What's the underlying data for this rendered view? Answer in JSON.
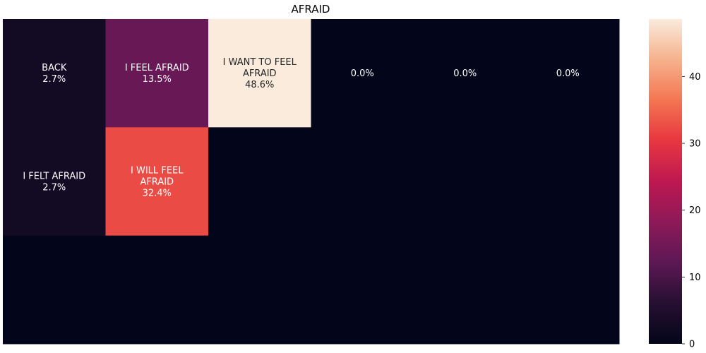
{
  "chart_data": {
    "type": "heatmap",
    "title": "AFRAID",
    "rows": 3,
    "cols": 6,
    "cells": [
      {
        "row": 0,
        "col": 0,
        "label": "BACK",
        "value": 2.7,
        "text": "2.7%"
      },
      {
        "row": 0,
        "col": 1,
        "label": "I FEEL AFRAID",
        "value": 13.5,
        "text": "13.5%"
      },
      {
        "row": 0,
        "col": 2,
        "label": "I WANT TO FEEL AFRAID",
        "value": 48.6,
        "text": "48.6%"
      },
      {
        "row": 0,
        "col": 3,
        "label": "",
        "value": 0.0,
        "text": "0.0%"
      },
      {
        "row": 0,
        "col": 4,
        "label": "",
        "value": 0.0,
        "text": "0.0%"
      },
      {
        "row": 0,
        "col": 5,
        "label": "",
        "value": 0.0,
        "text": "0.0%"
      },
      {
        "row": 1,
        "col": 0,
        "label": "I FELT AFRAID",
        "value": 2.7,
        "text": "2.7%"
      },
      {
        "row": 1,
        "col": 1,
        "label": "I WILL FEEL AFRAID",
        "value": 32.4,
        "text": "32.4%"
      },
      {
        "row": 1,
        "col": 2,
        "label": "",
        "value": 0,
        "text": ""
      },
      {
        "row": 1,
        "col": 3,
        "label": "",
        "value": 0,
        "text": ""
      },
      {
        "row": 1,
        "col": 4,
        "label": "",
        "value": 0,
        "text": ""
      },
      {
        "row": 1,
        "col": 5,
        "label": "",
        "value": 0,
        "text": ""
      },
      {
        "row": 2,
        "col": 0,
        "label": "",
        "value": 0,
        "text": ""
      },
      {
        "row": 2,
        "col": 1,
        "label": "",
        "value": 0,
        "text": ""
      },
      {
        "row": 2,
        "col": 2,
        "label": "",
        "value": 0,
        "text": ""
      },
      {
        "row": 2,
        "col": 3,
        "label": "",
        "value": 0,
        "text": ""
      },
      {
        "row": 2,
        "col": 4,
        "label": "",
        "value": 0,
        "text": ""
      },
      {
        "row": 2,
        "col": 5,
        "label": "",
        "value": 0,
        "text": ""
      }
    ],
    "colorbar": {
      "colormap": "rocket",
      "vmin": 0,
      "vmax": 48.6,
      "ticks": [
        0,
        10,
        20,
        30,
        40
      ]
    }
  }
}
